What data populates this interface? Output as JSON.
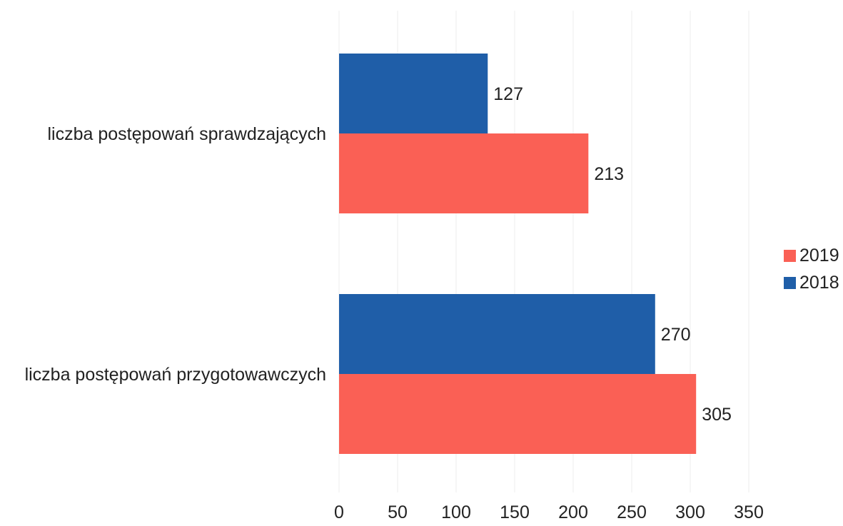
{
  "chart_data": {
    "type": "bar",
    "orientation": "horizontal",
    "categories": [
      "liczba postępowań sprawdzających",
      "liczba postępowań przygotowawczych"
    ],
    "series": [
      {
        "name": "2018",
        "values": [
          127,
          270
        ],
        "color": "#1f5ea8"
      },
      {
        "name": "2019",
        "values": [
          213,
          305
        ],
        "color": "#fa6055"
      }
    ],
    "xlim": [
      0,
      350
    ],
    "xticks": [
      0,
      50,
      100,
      150,
      200,
      250,
      300,
      350
    ],
    "title": "",
    "xlabel": "",
    "ylabel": "",
    "grid": true,
    "legend": {
      "placement": "right",
      "entries": [
        {
          "name": "2019",
          "color": "#fa6055"
        },
        {
          "name": "2018",
          "color": "#1f5ea8"
        }
      ]
    }
  }
}
